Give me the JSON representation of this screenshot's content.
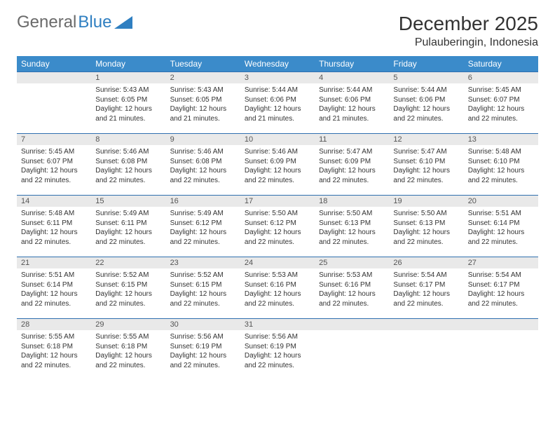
{
  "brand": {
    "name_part1": "General",
    "name_part2": "Blue"
  },
  "title": "December 2025",
  "location": "Pulauberingin, Indonesia",
  "colors": {
    "header_bg": "#3b8bca",
    "header_text": "#ffffff",
    "daynum_bg": "#e9e9e9",
    "rule": "#2f6faf",
    "body_text": "#333333",
    "logo_gray": "#6a6a6a",
    "logo_blue": "#2f7fc1"
  },
  "day_headers": [
    "Sunday",
    "Monday",
    "Tuesday",
    "Wednesday",
    "Thursday",
    "Friday",
    "Saturday"
  ],
  "weeks": [
    [
      {
        "blank": true
      },
      {
        "num": "1",
        "sunrise": "Sunrise: 5:43 AM",
        "sunset": "Sunset: 6:05 PM",
        "daylight": "Daylight: 12 hours and 21 minutes."
      },
      {
        "num": "2",
        "sunrise": "Sunrise: 5:43 AM",
        "sunset": "Sunset: 6:05 PM",
        "daylight": "Daylight: 12 hours and 21 minutes."
      },
      {
        "num": "3",
        "sunrise": "Sunrise: 5:44 AM",
        "sunset": "Sunset: 6:06 PM",
        "daylight": "Daylight: 12 hours and 21 minutes."
      },
      {
        "num": "4",
        "sunrise": "Sunrise: 5:44 AM",
        "sunset": "Sunset: 6:06 PM",
        "daylight": "Daylight: 12 hours and 21 minutes."
      },
      {
        "num": "5",
        "sunrise": "Sunrise: 5:44 AM",
        "sunset": "Sunset: 6:06 PM",
        "daylight": "Daylight: 12 hours and 22 minutes."
      },
      {
        "num": "6",
        "sunrise": "Sunrise: 5:45 AM",
        "sunset": "Sunset: 6:07 PM",
        "daylight": "Daylight: 12 hours and 22 minutes."
      }
    ],
    [
      {
        "num": "7",
        "sunrise": "Sunrise: 5:45 AM",
        "sunset": "Sunset: 6:07 PM",
        "daylight": "Daylight: 12 hours and 22 minutes."
      },
      {
        "num": "8",
        "sunrise": "Sunrise: 5:46 AM",
        "sunset": "Sunset: 6:08 PM",
        "daylight": "Daylight: 12 hours and 22 minutes."
      },
      {
        "num": "9",
        "sunrise": "Sunrise: 5:46 AM",
        "sunset": "Sunset: 6:08 PM",
        "daylight": "Daylight: 12 hours and 22 minutes."
      },
      {
        "num": "10",
        "sunrise": "Sunrise: 5:46 AM",
        "sunset": "Sunset: 6:09 PM",
        "daylight": "Daylight: 12 hours and 22 minutes."
      },
      {
        "num": "11",
        "sunrise": "Sunrise: 5:47 AM",
        "sunset": "Sunset: 6:09 PM",
        "daylight": "Daylight: 12 hours and 22 minutes."
      },
      {
        "num": "12",
        "sunrise": "Sunrise: 5:47 AM",
        "sunset": "Sunset: 6:10 PM",
        "daylight": "Daylight: 12 hours and 22 minutes."
      },
      {
        "num": "13",
        "sunrise": "Sunrise: 5:48 AM",
        "sunset": "Sunset: 6:10 PM",
        "daylight": "Daylight: 12 hours and 22 minutes."
      }
    ],
    [
      {
        "num": "14",
        "sunrise": "Sunrise: 5:48 AM",
        "sunset": "Sunset: 6:11 PM",
        "daylight": "Daylight: 12 hours and 22 minutes."
      },
      {
        "num": "15",
        "sunrise": "Sunrise: 5:49 AM",
        "sunset": "Sunset: 6:11 PM",
        "daylight": "Daylight: 12 hours and 22 minutes."
      },
      {
        "num": "16",
        "sunrise": "Sunrise: 5:49 AM",
        "sunset": "Sunset: 6:12 PM",
        "daylight": "Daylight: 12 hours and 22 minutes."
      },
      {
        "num": "17",
        "sunrise": "Sunrise: 5:50 AM",
        "sunset": "Sunset: 6:12 PM",
        "daylight": "Daylight: 12 hours and 22 minutes."
      },
      {
        "num": "18",
        "sunrise": "Sunrise: 5:50 AM",
        "sunset": "Sunset: 6:13 PM",
        "daylight": "Daylight: 12 hours and 22 minutes."
      },
      {
        "num": "19",
        "sunrise": "Sunrise: 5:50 AM",
        "sunset": "Sunset: 6:13 PM",
        "daylight": "Daylight: 12 hours and 22 minutes."
      },
      {
        "num": "20",
        "sunrise": "Sunrise: 5:51 AM",
        "sunset": "Sunset: 6:14 PM",
        "daylight": "Daylight: 12 hours and 22 minutes."
      }
    ],
    [
      {
        "num": "21",
        "sunrise": "Sunrise: 5:51 AM",
        "sunset": "Sunset: 6:14 PM",
        "daylight": "Daylight: 12 hours and 22 minutes."
      },
      {
        "num": "22",
        "sunrise": "Sunrise: 5:52 AM",
        "sunset": "Sunset: 6:15 PM",
        "daylight": "Daylight: 12 hours and 22 minutes."
      },
      {
        "num": "23",
        "sunrise": "Sunrise: 5:52 AM",
        "sunset": "Sunset: 6:15 PM",
        "daylight": "Daylight: 12 hours and 22 minutes."
      },
      {
        "num": "24",
        "sunrise": "Sunrise: 5:53 AM",
        "sunset": "Sunset: 6:16 PM",
        "daylight": "Daylight: 12 hours and 22 minutes."
      },
      {
        "num": "25",
        "sunrise": "Sunrise: 5:53 AM",
        "sunset": "Sunset: 6:16 PM",
        "daylight": "Daylight: 12 hours and 22 minutes."
      },
      {
        "num": "26",
        "sunrise": "Sunrise: 5:54 AM",
        "sunset": "Sunset: 6:17 PM",
        "daylight": "Daylight: 12 hours and 22 minutes."
      },
      {
        "num": "27",
        "sunrise": "Sunrise: 5:54 AM",
        "sunset": "Sunset: 6:17 PM",
        "daylight": "Daylight: 12 hours and 22 minutes."
      }
    ],
    [
      {
        "num": "28",
        "sunrise": "Sunrise: 5:55 AM",
        "sunset": "Sunset: 6:18 PM",
        "daylight": "Daylight: 12 hours and 22 minutes."
      },
      {
        "num": "29",
        "sunrise": "Sunrise: 5:55 AM",
        "sunset": "Sunset: 6:18 PM",
        "daylight": "Daylight: 12 hours and 22 minutes."
      },
      {
        "num": "30",
        "sunrise": "Sunrise: 5:56 AM",
        "sunset": "Sunset: 6:19 PM",
        "daylight": "Daylight: 12 hours and 22 minutes."
      },
      {
        "num": "31",
        "sunrise": "Sunrise: 5:56 AM",
        "sunset": "Sunset: 6:19 PM",
        "daylight": "Daylight: 12 hours and 22 minutes."
      },
      {
        "blank": true
      },
      {
        "blank": true
      },
      {
        "blank": true
      }
    ]
  ]
}
